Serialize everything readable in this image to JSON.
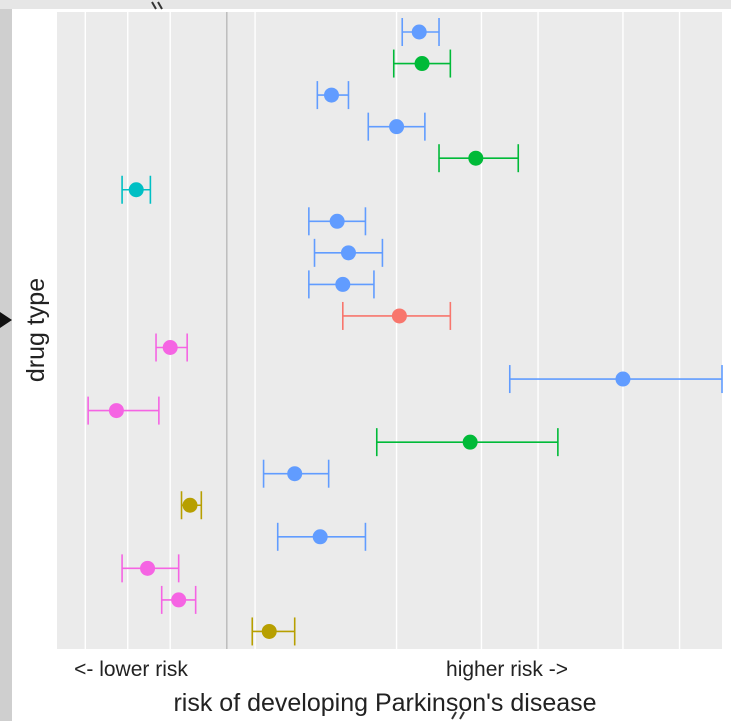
{
  "chart_data": {
    "type": "scatter",
    "subtype": "forest-plot",
    "xlabel": "risk of developing Parkinson's disease",
    "ylabel": "drug type",
    "x_annotations": {
      "left": "<- lower risk",
      "right": "higher risk ->"
    },
    "xlim": [
      0.3,
      2.65
    ],
    "reference_line": 0.9,
    "vertical_gridlines": [
      0.4,
      0.55,
      0.7,
      1.0,
      1.5,
      1.8,
      2.0,
      2.3,
      2.5
    ],
    "grid": true,
    "background": "#ebebeb",
    "legend": "none",
    "points": [
      {
        "row": 1,
        "estimate": 1.58,
        "lower": 1.52,
        "upper": 1.65,
        "color": "#619cff"
      },
      {
        "row": 2,
        "estimate": 1.59,
        "lower": 1.49,
        "upper": 1.69,
        "color": "#00ba38"
      },
      {
        "row": 3,
        "estimate": 1.27,
        "lower": 1.22,
        "upper": 1.33,
        "color": "#619cff"
      },
      {
        "row": 4,
        "estimate": 1.5,
        "lower": 1.4,
        "upper": 1.6,
        "color": "#619cff"
      },
      {
        "row": 5,
        "estimate": 1.78,
        "lower": 1.65,
        "upper": 1.93,
        "color": "#00ba38"
      },
      {
        "row": 6,
        "estimate": 0.58,
        "lower": 0.53,
        "upper": 0.63,
        "color": "#00bfc4"
      },
      {
        "row": 7,
        "estimate": 1.29,
        "lower": 1.19,
        "upper": 1.39,
        "color": "#619cff"
      },
      {
        "row": 8,
        "estimate": 1.33,
        "lower": 1.21,
        "upper": 1.45,
        "color": "#619cff"
      },
      {
        "row": 9,
        "estimate": 1.31,
        "lower": 1.19,
        "upper": 1.42,
        "color": "#619cff"
      },
      {
        "row": 10,
        "estimate": 1.51,
        "lower": 1.31,
        "upper": 1.69,
        "color": "#f8766d"
      },
      {
        "row": 11,
        "estimate": 0.7,
        "lower": 0.65,
        "upper": 0.76,
        "color": "#f564e3"
      },
      {
        "row": 12,
        "estimate": 2.3,
        "lower": 1.9,
        "upper": 2.65,
        "color": "#619cff"
      },
      {
        "row": 13,
        "estimate": 0.51,
        "lower": 0.41,
        "upper": 0.66,
        "color": "#f564e3"
      },
      {
        "row": 14,
        "estimate": 1.76,
        "lower": 1.43,
        "upper": 2.07,
        "color": "#00ba38"
      },
      {
        "row": 15,
        "estimate": 1.14,
        "lower": 1.03,
        "upper": 1.26,
        "color": "#619cff"
      },
      {
        "row": 16,
        "estimate": 0.77,
        "lower": 0.74,
        "upper": 0.81,
        "color": "#b79f00"
      },
      {
        "row": 17,
        "estimate": 1.23,
        "lower": 1.08,
        "upper": 1.39,
        "color": "#619cff"
      },
      {
        "row": 18,
        "estimate": 0.62,
        "lower": 0.53,
        "upper": 0.73,
        "color": "#f564e3"
      },
      {
        "row": 19,
        "estimate": 0.73,
        "lower": 0.67,
        "upper": 0.79,
        "color": "#f564e3"
      },
      {
        "row": 20,
        "estimate": 1.05,
        "lower": 0.99,
        "upper": 1.14,
        "color": "#b79f00"
      }
    ]
  }
}
